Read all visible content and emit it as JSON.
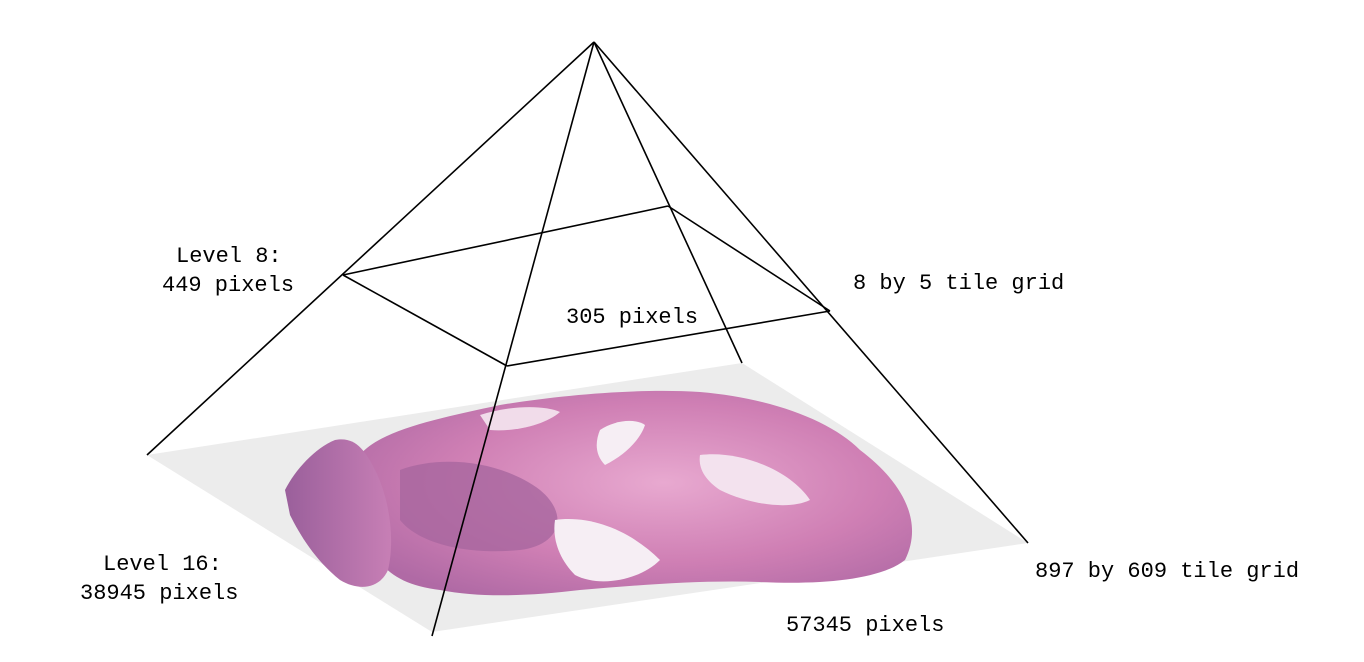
{
  "diagram": {
    "colors": {
      "line": "#000000",
      "slide_background": "#ececec",
      "tissue_main": "#cf7fb4",
      "tissue_light": "#e8a9d0",
      "tissue_dark": "#9a5f9b",
      "tissue_gap": "#f6eef4"
    },
    "labels": {
      "top_level": "Level 8:",
      "top_level_size": "449 pixels",
      "top_width": "305 pixels",
      "top_grid": "8 by 5 tile grid",
      "base_level": "Level 16:",
      "base_level_size": "38945 pixels",
      "base_width": "57345 pixels",
      "base_grid": "897 by 609 tile grid"
    },
    "image": {
      "description_icon": "tissue-slide-image"
    }
  }
}
